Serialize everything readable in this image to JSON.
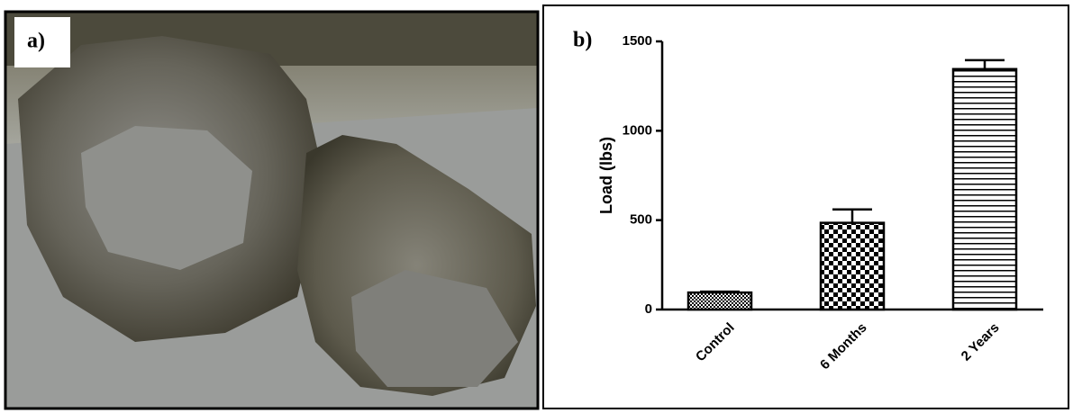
{
  "figure_labels": [
    "a)",
    "b)"
  ],
  "chart_data": {
    "type": "bar",
    "y_label": "Load (lbs)",
    "categories": [
      "Control",
      "6 Months",
      "2 Years"
    ],
    "values": [
      95,
      485,
      1345
    ],
    "errors": [
      5,
      75,
      50
    ],
    "color": "#000000",
    "ylim": [
      0,
      1500
    ],
    "yticks": [
      0,
      500,
      1000,
      1500
    ],
    "grid": false
  }
}
